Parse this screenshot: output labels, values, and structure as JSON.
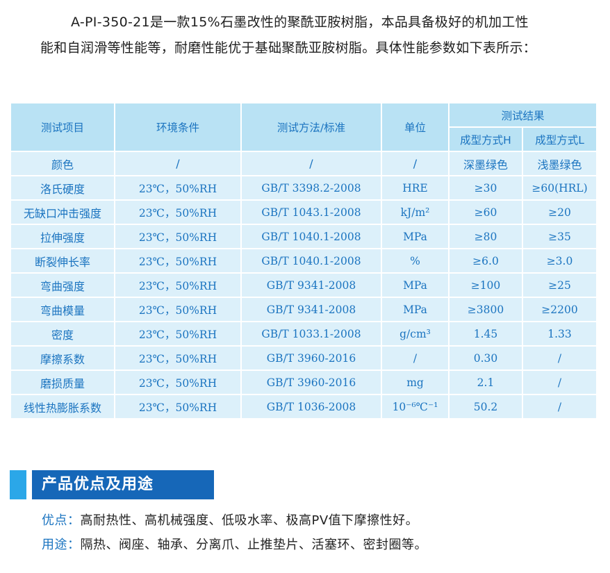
{
  "intro": {
    "line1": "A-PI-350-21是一款15%石墨改性的聚酰亚胺树脂，本品具备极好的机加工性",
    "line2": "能和自润滑等性能等，耐磨性能优于基础聚酰亚胺树脂。具体性能参数如下表所示："
  },
  "table": {
    "headers": {
      "item": "测试项目",
      "condition": "环境条件",
      "method": "测试方法/标准",
      "unit": "单位",
      "result": "测试结果",
      "mode_h": "成型方式H",
      "mode_l": "成型方式L"
    },
    "rows": [
      {
        "item": "颜色",
        "condition": "/",
        "method": "/",
        "unit": "/",
        "h": "深墨绿色",
        "l": "浅墨绿色"
      },
      {
        "item": "洛氏硬度",
        "condition": "23℃，50%RH",
        "method": "GB/T 3398.2-2008",
        "unit": "HRE",
        "h": "≥30",
        "l": "≥60(HRL)"
      },
      {
        "item": "无缺口冲击强度",
        "condition": "23℃，50%RH",
        "method": "GB/T 1043.1-2008",
        "unit": "kJ/m²",
        "h": "≥60",
        "l": "≥20"
      },
      {
        "item": "拉伸强度",
        "condition": "23℃，50%RH",
        "method": "GB/T 1040.1-2008",
        "unit": "MPa",
        "h": "≥80",
        "l": "≥35"
      },
      {
        "item": "断裂伸长率",
        "condition": "23℃，50%RH",
        "method": "GB/T 1040.1-2008",
        "unit": "%",
        "h": "≥6.0",
        "l": "≥3.0"
      },
      {
        "item": "弯曲强度",
        "condition": "23℃，50%RH",
        "method": "GB/T 9341-2008",
        "unit": "MPa",
        "h": "≥100",
        "l": "≥25"
      },
      {
        "item": "弯曲模量",
        "condition": "23℃，50%RH",
        "method": "GB/T 9341-2008",
        "unit": "MPa",
        "h": "≥3800",
        "l": "≥2200"
      },
      {
        "item": "密度",
        "condition": "23℃，50%RH",
        "method": "GB/T 1033.1-2008",
        "unit": "g/cm³",
        "h": "1.45",
        "l": "1.33"
      },
      {
        "item": "摩擦系数",
        "condition": "23℃，50%RH",
        "method": "GB/T 3960-2016",
        "unit": "/",
        "h": "0.30",
        "l": "/"
      },
      {
        "item": "磨损质量",
        "condition": "23℃，50%RH",
        "method": "GB/T 3960-2016",
        "unit": "mg",
        "h": "2.1",
        "l": "/"
      },
      {
        "item": "线性热膨胀系数",
        "condition": "23℃，50%RH",
        "method": "GB/T 1036-2008",
        "unit": "10⁻⁶℃⁻¹",
        "h": "50.2",
        "l": "/"
      }
    ]
  },
  "section": {
    "title": "产品优点及用途",
    "advantages_label": "优点：",
    "advantages_text": "高耐热性、高机械强度、低吸水率、极高PV值下摩擦性好。",
    "uses_label": "用途：",
    "uses_text": "隔热、阀座、轴承、分离爪、止推垫片、活塞环、密封圈等。"
  },
  "colors": {
    "header_bg": "#b9e2f4",
    "cell_bg": "#dcf0fa",
    "text_blue": "#1b74c0",
    "section_bar": "#2ba7e8",
    "section_box": "#1667b8"
  }
}
